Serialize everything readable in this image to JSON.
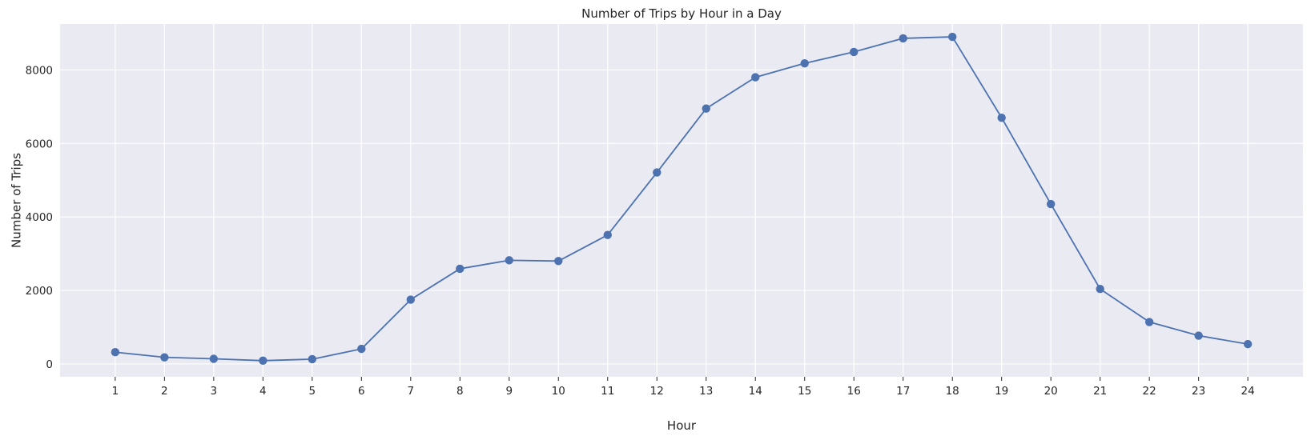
{
  "chart_data": {
    "type": "line",
    "title": "Number of Trips by Hour in a Day",
    "xlabel": "Hour",
    "ylabel": "Number of Trips",
    "x": [
      1,
      2,
      3,
      4,
      5,
      6,
      7,
      8,
      9,
      10,
      11,
      12,
      13,
      14,
      15,
      16,
      17,
      18,
      19,
      20,
      21,
      22,
      23,
      24
    ],
    "series": [
      {
        "values": [
          320,
          180,
          140,
          90,
          130,
          410,
          1750,
          2590,
          2820,
          2800,
          3510,
          5210,
          6950,
          7800,
          8180,
          8490,
          8860,
          8900,
          6700,
          4350,
          2040,
          1140,
          770,
          540
        ],
        "color": "#4c72b0",
        "marker": "circle"
      }
    ],
    "xlim": [
      -0.12,
      25.12
    ],
    "ylim": [
      -350,
      9250
    ],
    "yticks": [
      0,
      2000,
      4000,
      6000,
      8000
    ],
    "grid": true,
    "style": {
      "background": "#eaeaf2",
      "grid_color": "#ffffff"
    }
  }
}
